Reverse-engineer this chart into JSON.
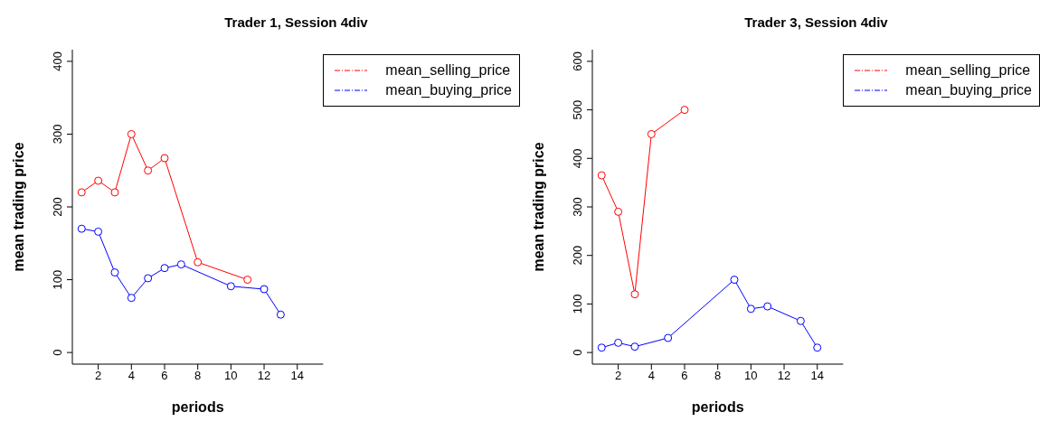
{
  "chart_data": [
    {
      "type": "line",
      "title": "Trader 1, Session 4div",
      "xlabel": "periods",
      "ylabel": "mean trading price",
      "xlim": [
        0.44,
        15.56
      ],
      "xticks": [
        2,
        4,
        6,
        8,
        10,
        12,
        14
      ],
      "ylim": [
        -16,
        416
      ],
      "yticks": [
        0,
        100,
        200,
        300,
        400
      ],
      "grid": false,
      "legend": "top right",
      "marker": "circle",
      "series": [
        {
          "name": "mean_selling_price",
          "color": "#ff0000",
          "x": [
            1,
            2,
            3,
            4,
            5,
            6,
            8,
            11
          ],
          "values": [
            220,
            236,
            220,
            300,
            250,
            267,
            124,
            100
          ]
        },
        {
          "name": "mean_buying_price",
          "color": "#0000ff",
          "x": [
            1,
            2,
            3,
            4,
            5,
            6,
            7,
            10,
            12,
            13
          ],
          "values": [
            170,
            166,
            110,
            75,
            102,
            116,
            121,
            91,
            87,
            52
          ]
        }
      ]
    },
    {
      "type": "line",
      "title": "Trader 3, Session 4div",
      "xlabel": "periods",
      "ylabel": "mean trading price",
      "xlim": [
        0.44,
        15.56
      ],
      "xticks": [
        2,
        4,
        6,
        8,
        10,
        12,
        14
      ],
      "ylim": [
        -24,
        624
      ],
      "yticks": [
        0,
        100,
        200,
        300,
        400,
        500,
        600
      ],
      "grid": false,
      "legend": "top right",
      "marker": "circle",
      "series": [
        {
          "name": "mean_selling_price",
          "color": "#ff0000",
          "x": [
            1,
            2,
            3,
            4,
            6
          ],
          "values": [
            365,
            290,
            120,
            450,
            500
          ]
        },
        {
          "name": "mean_buying_price",
          "color": "#0000ff",
          "x": [
            1,
            2,
            3,
            5,
            9,
            10,
            11,
            13,
            14
          ],
          "values": [
            10,
            20,
            12,
            30,
            150,
            90,
            95,
            65,
            10
          ]
        }
      ]
    }
  ]
}
